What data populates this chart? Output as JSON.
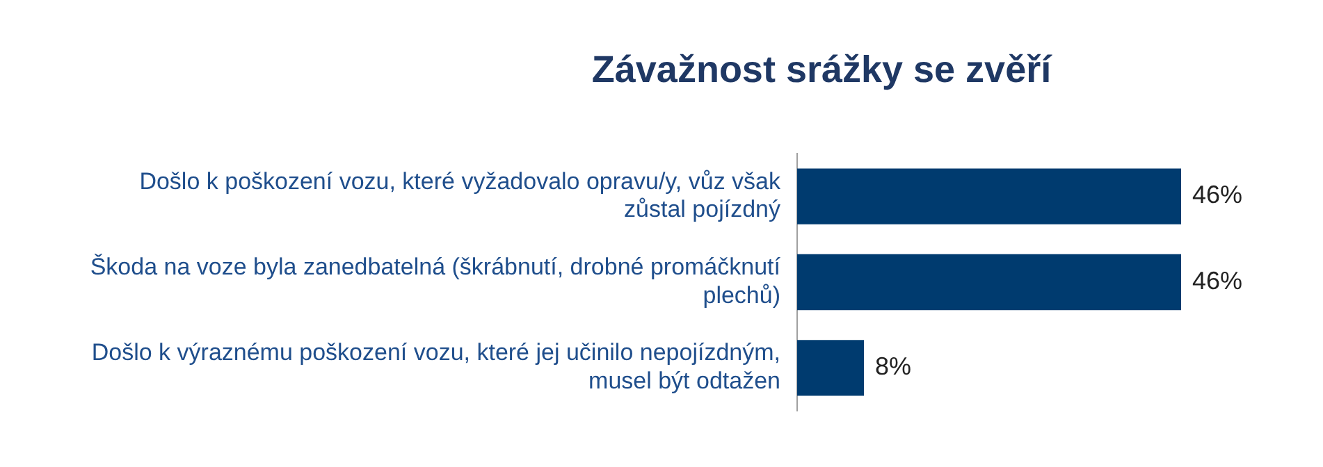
{
  "chart_data": {
    "type": "bar",
    "orientation": "horizontal",
    "title": "Závažnost srážky se zvěří",
    "categories": [
      "Došlo k poškození vozu, které vyžadovalo opravu/y, vůz však zůstal pojízdný",
      "Škoda na voze byla zanedbatelná (škrábnutí, drobné promáčknutí plechů)",
      "Došlo k výraznému poškození vozu, které jej učinilo nepojízdným, musel být odtažen"
    ],
    "values": [
      46,
      46,
      8
    ],
    "color": "#003b6f",
    "value_labels": [
      "46%",
      "46%",
      "8%"
    ],
    "tick_labels": "y",
    "legend": false
  }
}
